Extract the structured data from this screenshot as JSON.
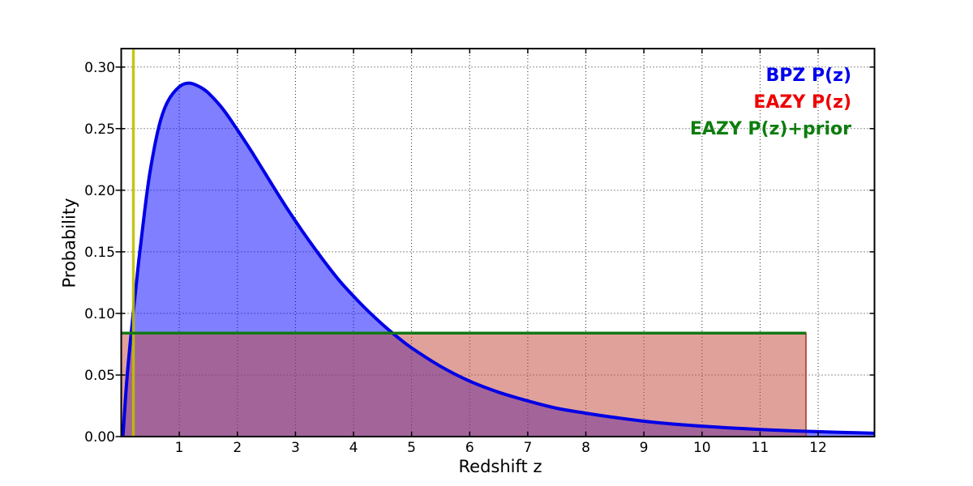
{
  "figure": {
    "xlabel": "Redshift z",
    "ylabel": "Probability",
    "legend": [
      {
        "label": "BPZ P(z)",
        "color": "#0000ee"
      },
      {
        "label": "EAZY P(z)",
        "color": "#ee0000"
      },
      {
        "label": "EAZY P(z)+prior",
        "color": "#0d7d0d"
      }
    ]
  },
  "chart_data": {
    "type": "line",
    "title": "",
    "xlabel": "Redshift z",
    "ylabel": "Probability",
    "xlim": [
      0,
      12.97
    ],
    "ylim": [
      0,
      0.315
    ],
    "xticks": [
      1,
      2,
      3,
      4,
      5,
      6,
      7,
      8,
      9,
      10,
      11,
      12
    ],
    "yticks": [
      0.0,
      0.05,
      0.1,
      0.15,
      0.2,
      0.25,
      0.3
    ],
    "ytick_labels": [
      "0.00",
      "0.05",
      "0.10",
      "0.15",
      "0.20",
      "0.25",
      "0.30"
    ],
    "grid": {
      "on": true,
      "style": "dotted",
      "color": "#000000"
    },
    "legend_position": "upper right, text only (no frame, no markers)",
    "series": [
      {
        "name": "BPZ P(z)",
        "style": "filled-curve",
        "line_color": "#0000e6",
        "fill_color": "rgba(0,0,255,0.5)",
        "line_width": 4,
        "peak": {
          "z": 1.17,
          "p": 0.287
        },
        "z": [
          0.03,
          0.1,
          0.2,
          0.3,
          0.4,
          0.5,
          0.65,
          0.8,
          1.0,
          1.17,
          1.35,
          1.5,
          1.75,
          2.0,
          2.25,
          2.5,
          2.75,
          3.0,
          3.25,
          3.5,
          3.75,
          4.0,
          4.25,
          4.5,
          4.75,
          5.0,
          5.5,
          6.0,
          6.5,
          7.0,
          7.5,
          8.0,
          8.5,
          9.0,
          9.5,
          10.0,
          10.5,
          11.0,
          11.5,
          12.0,
          12.5,
          12.97
        ],
        "p": [
          0.0,
          0.048,
          0.097,
          0.142,
          0.182,
          0.216,
          0.252,
          0.272,
          0.284,
          0.287,
          0.284,
          0.279,
          0.266,
          0.249,
          0.231,
          0.212,
          0.193,
          0.175,
          0.158,
          0.142,
          0.127,
          0.114,
          0.102,
          0.091,
          0.081,
          0.072,
          0.057,
          0.045,
          0.036,
          0.029,
          0.023,
          0.019,
          0.0155,
          0.0125,
          0.0102,
          0.0085,
          0.007,
          0.0058,
          0.0048,
          0.004,
          0.0033,
          0.0027
        ]
      },
      {
        "name": "EAZY P(z)",
        "style": "filled-box",
        "fill_color": "rgba(195,75,62,0.52)",
        "edge_color": "rgba(170,55,45,0.8)",
        "edge_width": 2,
        "z_range": [
          0,
          11.79
        ],
        "level": 0.084
      },
      {
        "name": "EAZY P(z)+prior",
        "style": "hline",
        "color": "#147814",
        "line_width": 3.5,
        "level": 0.084,
        "z_range": [
          0,
          11.79
        ]
      },
      {
        "name": "redshift-marker",
        "style": "vline",
        "color": "#bfbf00",
        "line_width": 3.5,
        "opacity": 0.9,
        "z": 0.21,
        "spans": "full plot height"
      }
    ]
  }
}
